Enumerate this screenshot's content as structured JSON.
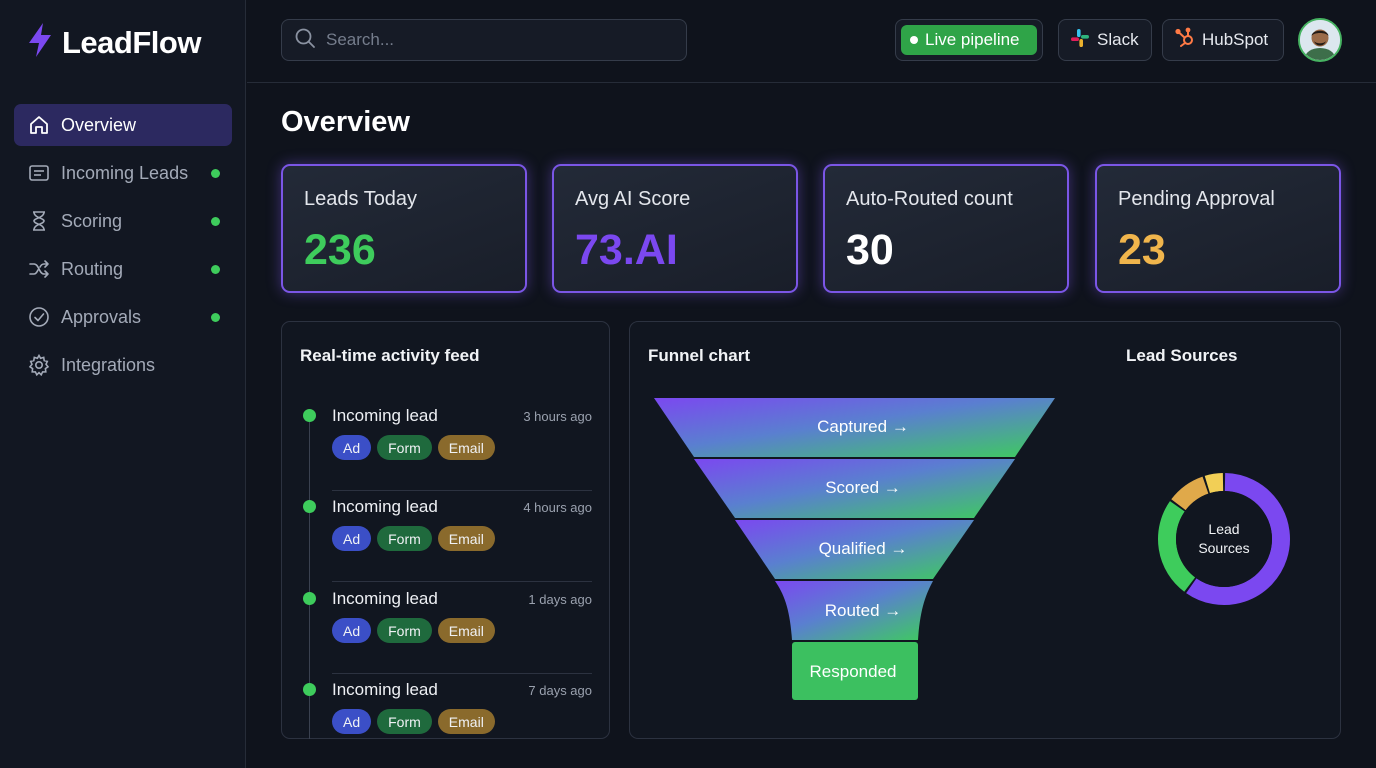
{
  "app": {
    "name": "LeadFlow"
  },
  "sidebar": {
    "items": [
      {
        "label": "Overview",
        "icon": "home-icon",
        "active": true,
        "dot": false
      },
      {
        "label": "Incoming Leads",
        "icon": "inbox-icon",
        "active": false,
        "dot": true
      },
      {
        "label": "Scoring",
        "icon": "hourglass-icon",
        "active": false,
        "dot": true
      },
      {
        "label": "Routing",
        "icon": "shuffle-icon",
        "active": false,
        "dot": true
      },
      {
        "label": "Approvals",
        "icon": "check-circle-icon",
        "active": false,
        "dot": true
      },
      {
        "label": "Integrations",
        "icon": "gear-icon",
        "active": false,
        "dot": false
      }
    ]
  },
  "topbar": {
    "search_placeholder": "Search...",
    "live_label": "Live pipeline",
    "slack_label": "Slack",
    "hubspot_label": "HubSpot"
  },
  "main": {
    "title": "Overview",
    "metrics": [
      {
        "label": "Leads Today",
        "value": "236",
        "color": "#3ecc5c"
      },
      {
        "label": "Avg AI Score",
        "value": "73.AI",
        "color": "#7b48f0"
      },
      {
        "label": "Auto-Routed count",
        "value": "30",
        "color": "#ffffff"
      },
      {
        "label": "Pending Approval",
        "value": "23",
        "color": "#f0b54c"
      }
    ]
  },
  "feed": {
    "title": "Real-time activity feed",
    "items": [
      {
        "title": "Incoming lead",
        "time": "3 hours ago",
        "tags": [
          "Ad",
          "Form",
          "Email"
        ]
      },
      {
        "title": "Incoming lead",
        "time": "4 hours ago",
        "tags": [
          "Ad",
          "Form",
          "Email"
        ]
      },
      {
        "title": "Incoming lead",
        "time": "1 days ago",
        "tags": [
          "Ad",
          "Form",
          "Email"
        ]
      },
      {
        "title": "Incoming lead",
        "time": "7 days ago",
        "tags": [
          "Ad",
          "Form",
          "Email"
        ]
      }
    ]
  },
  "funnel": {
    "title": "Funnel chart",
    "stages": [
      "Captured →",
      "Scored →",
      "Qualified →",
      "Routed →",
      "Responded"
    ]
  },
  "sources": {
    "title": "Lead Sources",
    "center_line1": "Lead",
    "center_line2": "Sources"
  },
  "chart_data": {
    "type": "pie",
    "title": "Lead Sources",
    "categories": [
      "",
      "",
      "",
      ""
    ],
    "values": [
      60,
      25,
      10,
      5
    ],
    "colors": [
      "#7b48f0",
      "#3ecc5c",
      "#e0a94a",
      "#f2cf56"
    ]
  }
}
